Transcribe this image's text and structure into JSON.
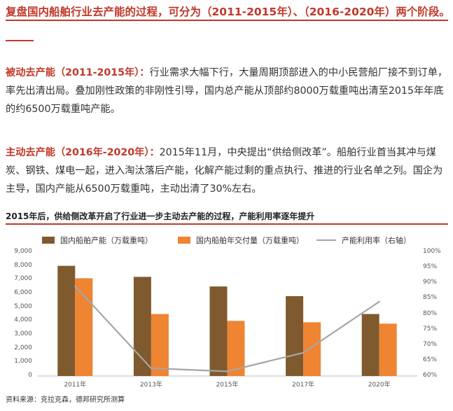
{
  "headline": "复盘国内船舶行业去产能的过程，可分为（2011-2015年）、（2016-2020年）两个阶段。",
  "paragraphs": [
    {
      "lead": "被动去产能（2011-2015年）：",
      "text": "行业需求大幅下行，大量周期顶部进入的中小民营船厂接不到订单，率先出清出局。叠加刚性政策的非刚性引导，国内总产能从顶部约8000万载重吨出清至2015年年底的约6500万载重吨产能。"
    },
    {
      "lead": "主动去产能（2016年-2020年）：",
      "text": "2015年11月，中央提出“供给侧改革”。船舶行业首当其冲与煤炭、钢铁、煤电一起，进入淘汰落后产能，化解产能过剩的重点执行、推进的行业名单之列。国企为主导，国内产能从6500万载重吨，主动出清了30%左右。"
    }
  ],
  "chart_title": "2015年后，供给侧改革开启了行业进一步主动去产能的过程，产能利用率逐年提升",
  "source": "资料来源：克拉克森，德邦研究所测算",
  "colors": {
    "capacity": "#7f5a2e",
    "delivery": "#ef8433",
    "utilization": "#a6a6a6",
    "accent": "#c0392b"
  },
  "chart_data": {
    "type": "bar",
    "categories": [
      "2011年",
      "2013年",
      "2015年",
      "2017年",
      "2020年"
    ],
    "series": [
      {
        "name": "国内船舶产能（万载重吨）",
        "type": "bar",
        "axis": "left",
        "values": [
          8000,
          7200,
          6500,
          5800,
          4500
        ]
      },
      {
        "name": "国内船舶年交付量（万载重吨）",
        "type": "bar",
        "axis": "left",
        "values": [
          7100,
          4500,
          4000,
          3900,
          3800
        ]
      },
      {
        "name": "产能利用率（右轴）",
        "type": "line",
        "axis": "right",
        "values": [
          89,
          62.5,
          61.5,
          67.5,
          84
        ]
      }
    ],
    "y_left": {
      "ylim": [
        0,
        9000
      ],
      "ticks": [
        "0",
        "1,000",
        "2,000",
        "3,000",
        "4,000",
        "5,000",
        "6,000",
        "7,000",
        "8,000",
        "9,000"
      ]
    },
    "y_right": {
      "ylim": [
        60,
        100
      ],
      "ticks": [
        "60%",
        "65%",
        "70%",
        "75%",
        "80%",
        "85%",
        "90%",
        "95%",
        "100%"
      ]
    },
    "grid": false,
    "legend": "top"
  }
}
